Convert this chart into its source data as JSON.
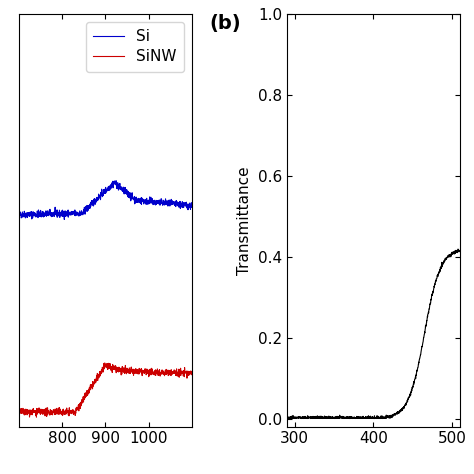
{
  "panel_a": {
    "xlim": [
      700,
      1100
    ],
    "ylim": [
      -0.01,
      0.7
    ],
    "si_color": "#0000CC",
    "sinw_color": "#CC0000",
    "legend_labels": [
      "Si",
      "SiNW"
    ],
    "xticks": [
      800,
      900,
      1000
    ]
  },
  "panel_b": {
    "label": "(b)",
    "ylabel": "Transmittance",
    "xlim": [
      290,
      510
    ],
    "ylim": [
      -0.02,
      1.0
    ],
    "line_color": "#000000",
    "xticks": [
      300,
      400,
      500
    ],
    "yticks": [
      0,
      0.2,
      0.4,
      0.6,
      0.8,
      1.0
    ]
  },
  "background_color": "#ffffff",
  "font_size": 11
}
